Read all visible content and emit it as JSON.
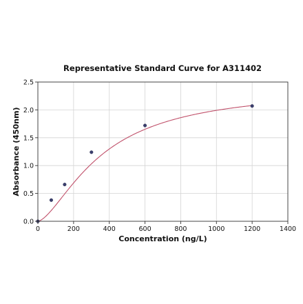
{
  "chart_data": {
    "type": "scatter",
    "title": "Representative Standard Curve for A311402",
    "xlabel": "Concentration (ng/L)",
    "ylabel": "Absorbance (450nm)",
    "xlim": [
      0,
      1400
    ],
    "ylim": [
      0,
      2.5
    ],
    "xticks": [
      0,
      200,
      400,
      600,
      800,
      1000,
      1200,
      1400
    ],
    "yticks": [
      0.0,
      0.5,
      1.0,
      1.5,
      2.0,
      2.5
    ],
    "ytick_labels": [
      "0.0",
      "0.5",
      "1.0",
      "1.5",
      "2.0",
      "2.5"
    ],
    "grid": true,
    "points": [
      {
        "x": 0,
        "y": 0.0
      },
      {
        "x": 75,
        "y": 0.38
      },
      {
        "x": 150,
        "y": 0.66
      },
      {
        "x": 300,
        "y": 1.24
      },
      {
        "x": 600,
        "y": 1.72
      },
      {
        "x": 1200,
        "y": 2.07
      }
    ],
    "fit_curve": {
      "type": "4PL",
      "curve_color": "#c0506a",
      "point_color": "#3b3f6e"
    }
  }
}
